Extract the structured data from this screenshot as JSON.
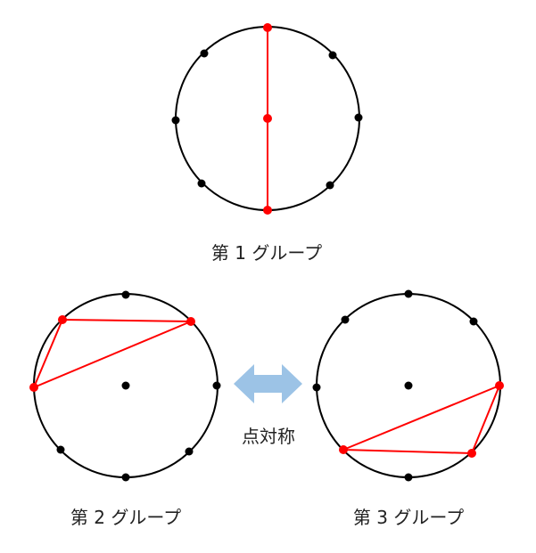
{
  "labels": {
    "group1": "第 1 グループ",
    "group2": "第 2 グループ",
    "group3": "第 3 グループ",
    "symmetry": "点対称"
  },
  "colors": {
    "circle": "#000000",
    "point": "#000000",
    "highlight": "#ff0000",
    "arrow": "#9cc3e6",
    "text": "#222222"
  }
}
